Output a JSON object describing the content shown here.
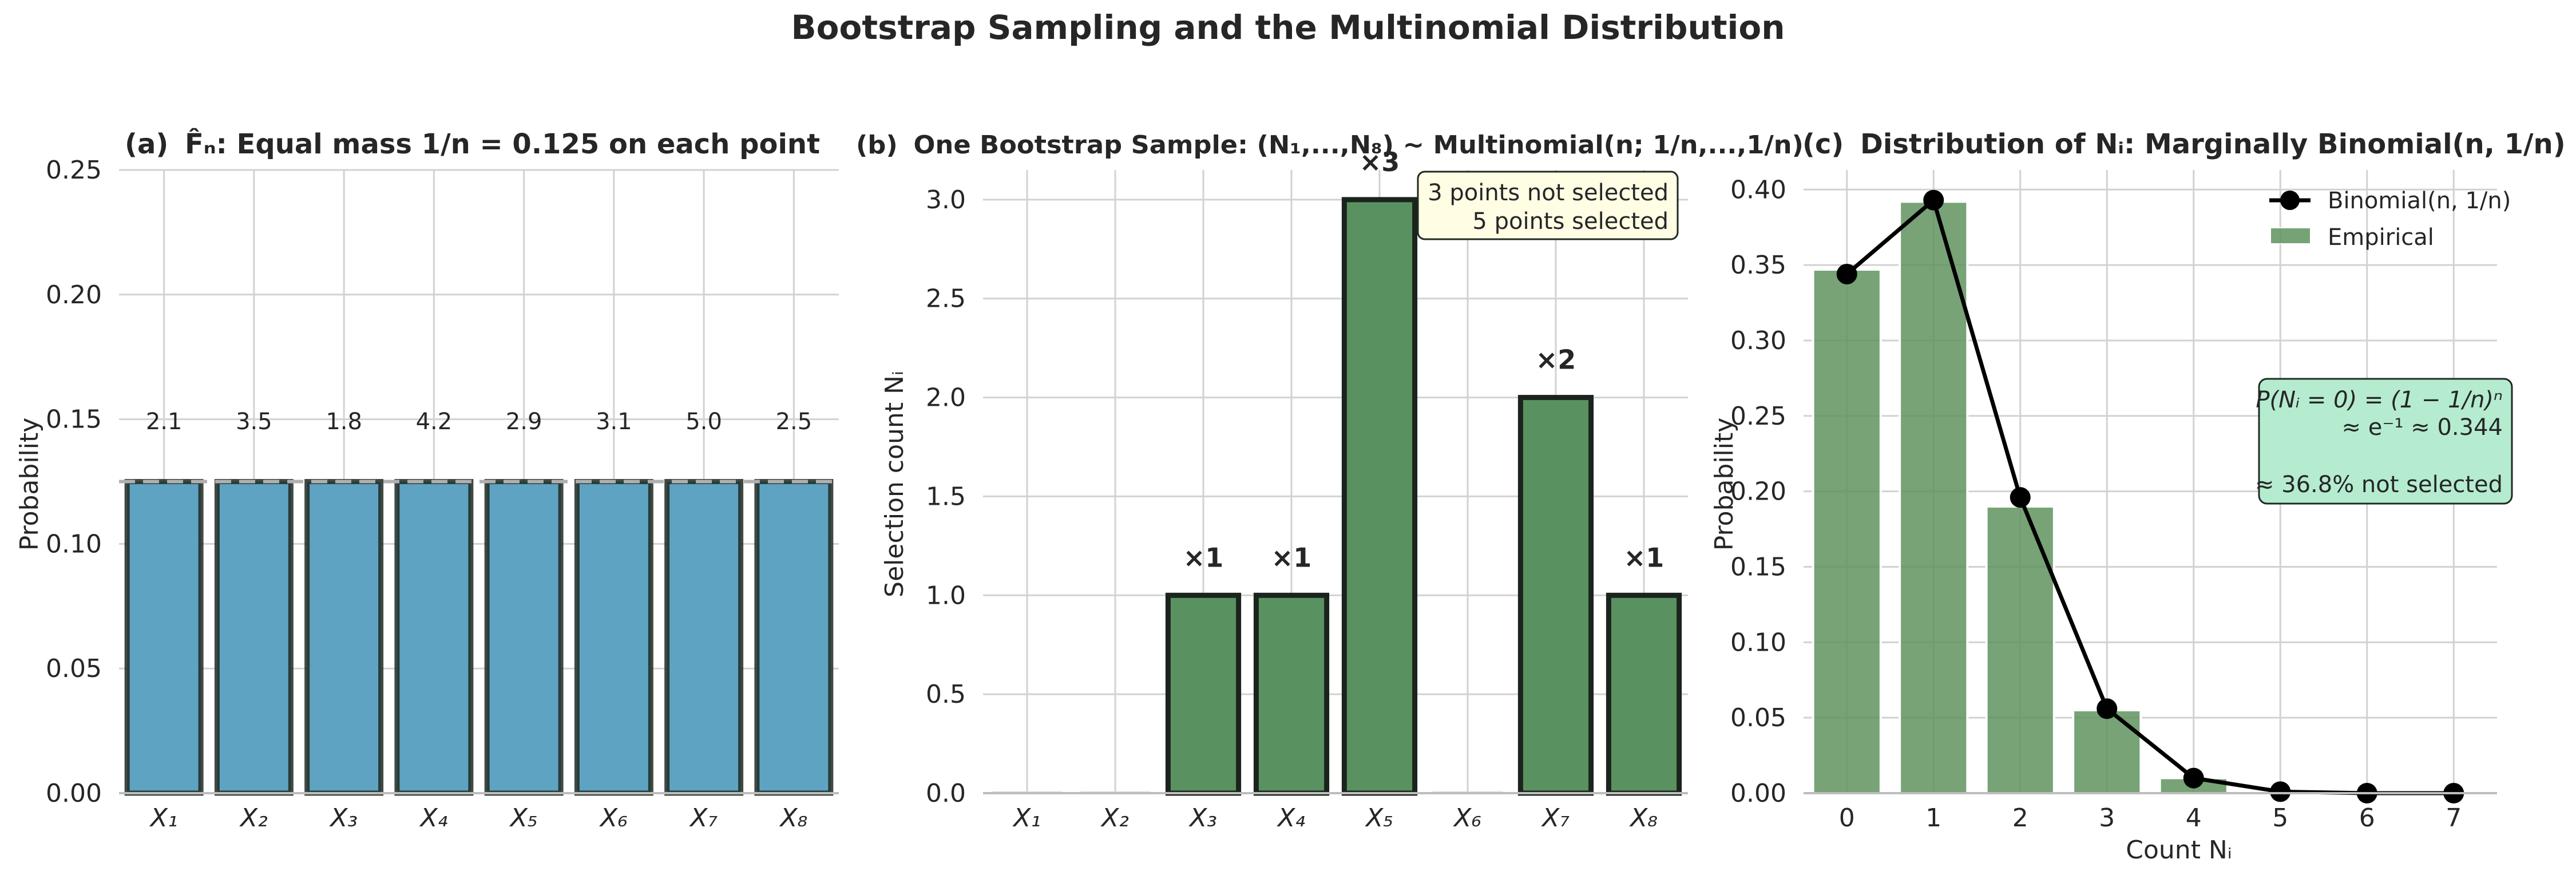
{
  "figure": {
    "title": "Bootstrap Sampling and the Multinomial Distribution"
  },
  "colors": {
    "panel_a_bar": "#5fa3c2",
    "panel_b_bar": "#5a9161",
    "panel_c_bar": "#5f935f",
    "edge": "#1f2a22",
    "grid": "#d2d2d2",
    "reference_line": "#b0b0b0",
    "box_yellow": "#fffde4",
    "box_green": "#b5ecd0"
  },
  "chart_data": [
    {
      "id": "a",
      "type": "bar",
      "title_prefix": "(a)",
      "title": "F̂ₙ: Equal mass 1/n = 0.125 on each point",
      "ylabel": "Probability",
      "xlabel": "",
      "categories": [
        "X₁",
        "X₂",
        "X₃",
        "X₄",
        "X₅",
        "X₆",
        "X₇",
        "X₈"
      ],
      "values": [
        0.125,
        0.125,
        0.125,
        0.125,
        0.125,
        0.125,
        0.125,
        0.125
      ],
      "bar_labels": [
        "2.1",
        "3.5",
        "1.8",
        "4.2",
        "2.9",
        "3.1",
        "5.0",
        "2.5"
      ],
      "reference_line": 0.125,
      "ylim": [
        0,
        0.25
      ],
      "yticks": [
        "0.00",
        "0.05",
        "0.10",
        "0.15",
        "0.20",
        "0.25"
      ],
      "grid": true
    },
    {
      "id": "b",
      "type": "bar",
      "title_prefix": "(b)",
      "title": "One Bootstrap Sample: (N₁,...,N₈) ~ Multinomial(n; 1/n,...,1/n)",
      "ylabel": "Selection count Nᵢ",
      "xlabel": "",
      "categories": [
        "X₁",
        "X₂",
        "X₃",
        "X₄",
        "X₅",
        "X₆",
        "X₇",
        "X₈"
      ],
      "values": [
        0,
        0,
        1,
        1,
        3,
        0,
        2,
        1
      ],
      "bar_labels": [
        "",
        "",
        "×1",
        "×1",
        "×3",
        "",
        "×2",
        "×1"
      ],
      "ylim": [
        0,
        3.15
      ],
      "yticks": [
        "0.0",
        "0.5",
        "1.0",
        "1.5",
        "2.0",
        "2.5",
        "3.0"
      ],
      "annotation": [
        "3 points not selected",
        "5 points selected"
      ],
      "grid": true
    },
    {
      "id": "c",
      "type": "bar",
      "title_prefix": "(c)",
      "title": "Distribution of Nᵢ: Marginally Binomial(n, 1/n)",
      "ylabel": "Probability",
      "xlabel": "Count Nᵢ",
      "categories": [
        "0",
        "1",
        "2",
        "3",
        "4",
        "5",
        "6",
        "7"
      ],
      "series": [
        {
          "name": "Empirical",
          "kind": "bar",
          "values": [
            0.347,
            0.392,
            0.19,
            0.055,
            0.01,
            0.001,
            0.0,
            0.0
          ]
        },
        {
          "name": "Binomial(n, 1/n)",
          "kind": "line",
          "values": [
            0.344,
            0.393,
            0.196,
            0.056,
            0.01,
            0.001,
            0.0,
            0.0
          ]
        }
      ],
      "ylim": [
        0,
        0.413
      ],
      "yticks": [
        "0.00",
        "0.05",
        "0.10",
        "0.15",
        "0.20",
        "0.25",
        "0.30",
        "0.35",
        "0.40"
      ],
      "legend_position": "top-right",
      "annotation": [
        "P(Nᵢ = 0) = (1 − 1/n)ⁿ",
        "≈ e⁻¹ ≈ 0.344",
        "≈ 36.8% not selected"
      ],
      "grid": true
    }
  ]
}
